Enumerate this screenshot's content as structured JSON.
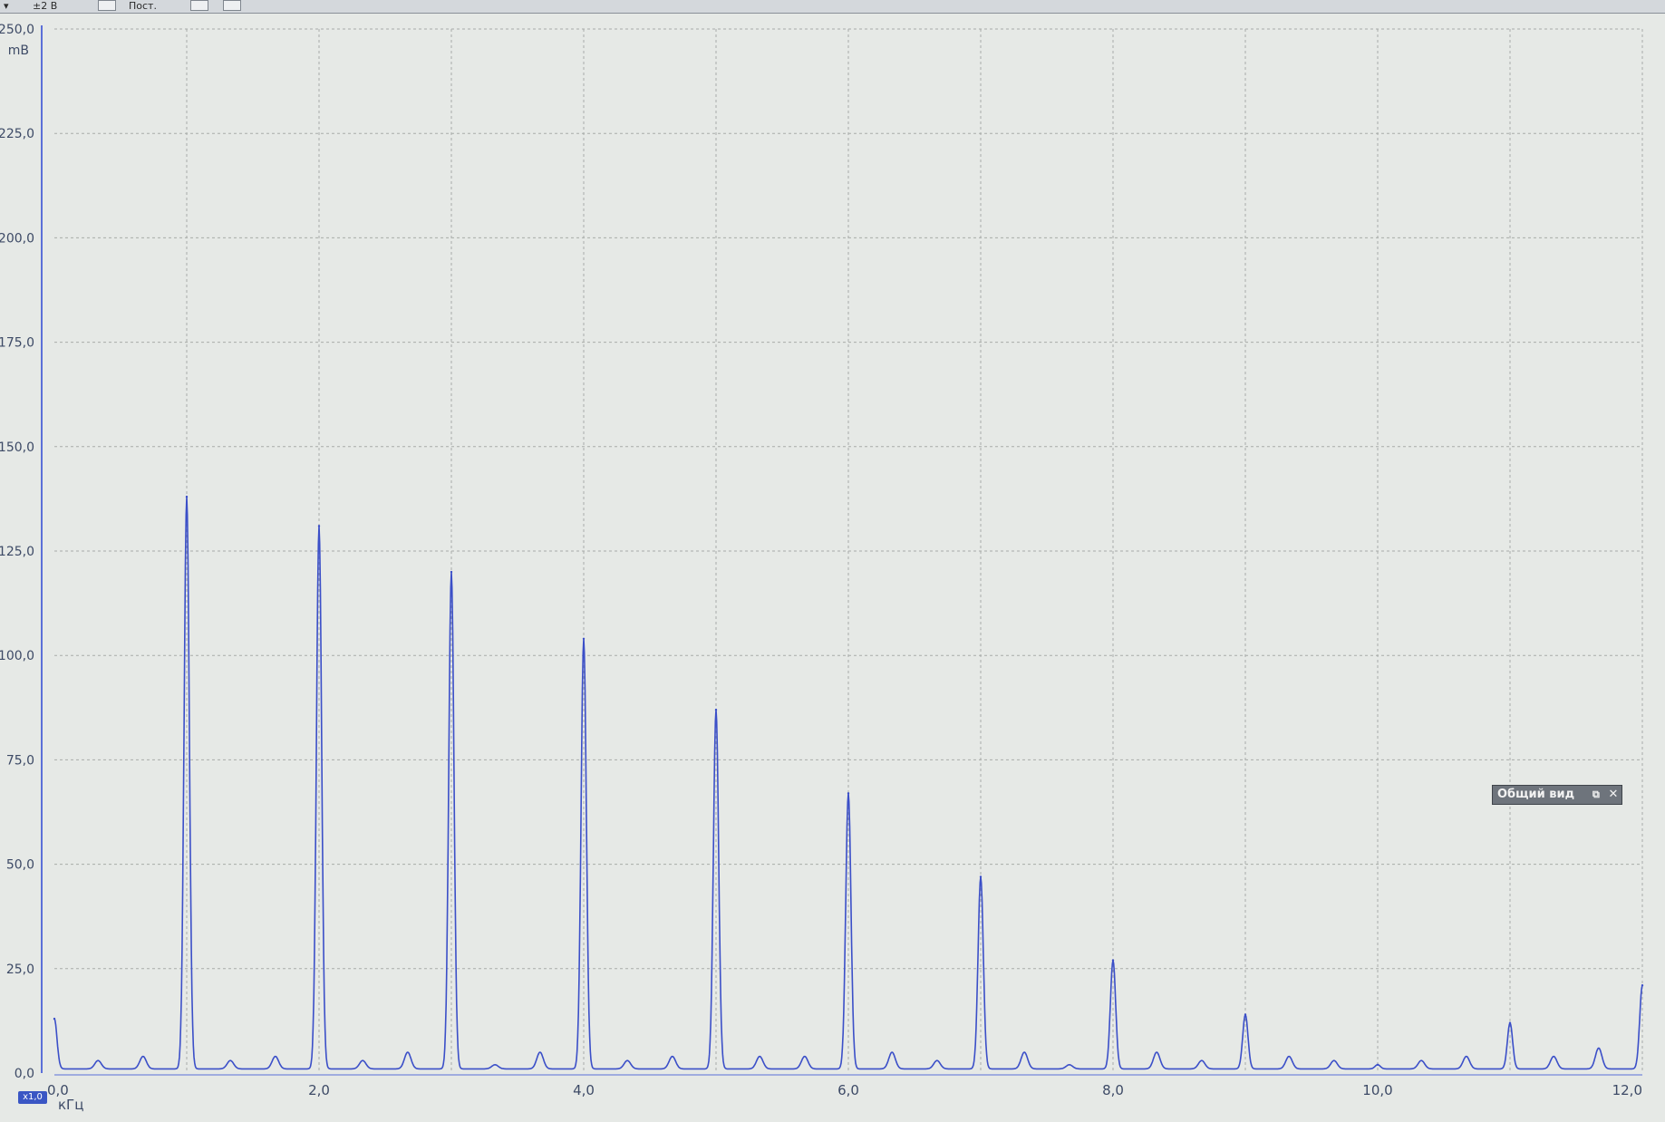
{
  "toolbar": {
    "range_label": "±2 В",
    "mode_label": "Пост."
  },
  "overview_panel": {
    "title": "Общий вид",
    "close_glyph": "✕"
  },
  "zoom_badge": "x1,0",
  "colors": {
    "plot_background": "#e6e9e6",
    "grid": "#a8aca9",
    "trace": "#3b4fc8",
    "axis_line": "#5b6fd8",
    "tick_text": "#3d4a66"
  },
  "chart_data": {
    "type": "line",
    "title": "",
    "xlabel": "",
    "ylabel": "",
    "x_unit": "кГц",
    "y_unit": "mB",
    "xlim": [
      0,
      12
    ],
    "ylim": [
      0,
      250
    ],
    "x_ticks": [
      "0,0",
      "2,0",
      "4,0",
      "6,0",
      "8,0",
      "10,0",
      "12,0"
    ],
    "y_ticks": [
      "0,0",
      "25,0",
      "50,0",
      "75,0",
      "100,0",
      "125,0",
      "150,0",
      "175,0",
      "200,0",
      "225,0",
      "250,0"
    ],
    "grid": true,
    "x_grid_step": 1,
    "y_grid_step": 25,
    "fundamental_khz": 1.0,
    "noise_floor": 1,
    "series": [
      {
        "name": "",
        "peaks": [
          {
            "x": 0.0,
            "y": 12
          },
          {
            "x": 1.0,
            "y": 137
          },
          {
            "x": 2.0,
            "y": 130
          },
          {
            "x": 3.0,
            "y": 119
          },
          {
            "x": 4.0,
            "y": 103
          },
          {
            "x": 5.0,
            "y": 86
          },
          {
            "x": 6.0,
            "y": 66
          },
          {
            "x": 7.0,
            "y": 46
          },
          {
            "x": 8.0,
            "y": 26
          },
          {
            "x": 9.0,
            "y": 13
          },
          {
            "x": 10.0,
            "y": 1
          },
          {
            "x": 11.0,
            "y": 11
          },
          {
            "x": 12.0,
            "y": 20
          }
        ],
        "side_peaks": [
          {
            "x": 0.33,
            "y": 2
          },
          {
            "x": 0.67,
            "y": 3
          },
          {
            "x": 1.33,
            "y": 2
          },
          {
            "x": 1.67,
            "y": 3
          },
          {
            "x": 2.33,
            "y": 2
          },
          {
            "x": 2.67,
            "y": 4
          },
          {
            "x": 3.33,
            "y": 1
          },
          {
            "x": 3.67,
            "y": 4
          },
          {
            "x": 4.33,
            "y": 2
          },
          {
            "x": 4.67,
            "y": 3
          },
          {
            "x": 5.33,
            "y": 3
          },
          {
            "x": 5.67,
            "y": 3
          },
          {
            "x": 6.33,
            "y": 4
          },
          {
            "x": 6.67,
            "y": 2
          },
          {
            "x": 7.33,
            "y": 4
          },
          {
            "x": 7.67,
            "y": 1
          },
          {
            "x": 8.33,
            "y": 4
          },
          {
            "x": 8.67,
            "y": 2
          },
          {
            "x": 9.33,
            "y": 3
          },
          {
            "x": 9.67,
            "y": 2
          },
          {
            "x": 10.33,
            "y": 2
          },
          {
            "x": 10.67,
            "y": 3
          },
          {
            "x": 11.33,
            "y": 3
          },
          {
            "x": 11.67,
            "y": 5
          }
        ]
      }
    ]
  }
}
